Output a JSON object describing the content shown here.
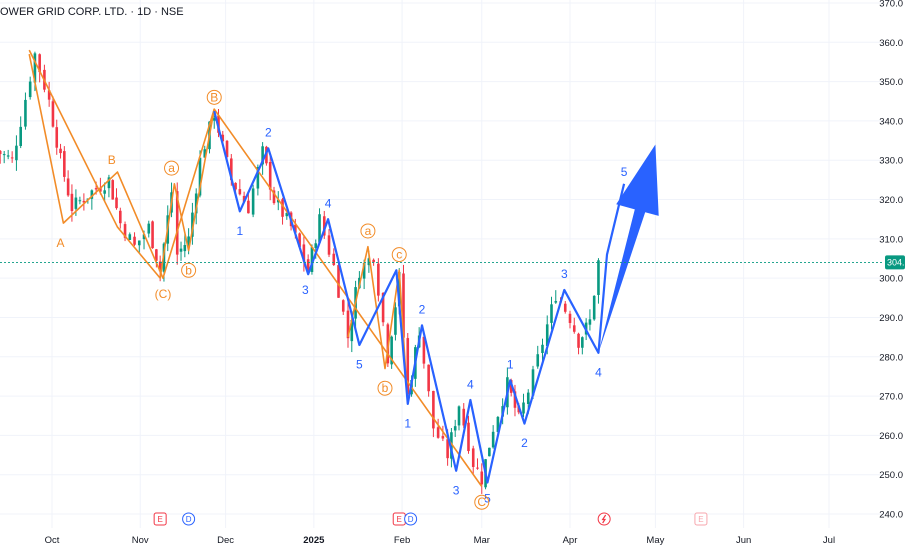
{
  "header": {
    "title": "OWER GRID CORP. LTD. · 1D · NSE"
  },
  "colors": {
    "up": "#089981",
    "down": "#f23645",
    "wave_blue": "#2962ff",
    "wave_orange": "#f28c28",
    "arrow": "#2962ff",
    "price_tag": "#089981",
    "grid": "#f0f3fa",
    "event_e": "#f23645",
    "event_d": "#2962ff",
    "event_future_e": "#f7a6ad"
  },
  "chart_data": {
    "type": "candlestick",
    "title": "OWER GRID CORP. LTD. · 1D · NSE",
    "y_ticks": [
      240,
      250,
      260,
      270,
      280,
      290,
      300,
      310,
      320,
      330,
      340,
      350,
      360,
      370
    ],
    "y_tick_labels": [
      "240.0",
      "250.0",
      "260.0",
      "270.0",
      "280.0",
      "290.0",
      "300.0",
      "310.0",
      "320.0",
      "330.0",
      "340.0",
      "350.0",
      "360.0",
      "370.0"
    ],
    "ylim": [
      237,
      372
    ],
    "x_ticks": [
      {
        "label": "Oct",
        "date": "2024-10-01",
        "bold": false
      },
      {
        "label": "Nov",
        "date": "2024-11-01",
        "bold": false
      },
      {
        "label": "Dec",
        "date": "2024-12-01",
        "bold": false
      },
      {
        "label": "2025",
        "date": "2025-01-01",
        "bold": true
      },
      {
        "label": "Feb",
        "date": "2025-02-01",
        "bold": false
      },
      {
        "label": "Mar",
        "date": "2025-03-01",
        "bold": false
      },
      {
        "label": "Apr",
        "date": "2025-04-01",
        "bold": false
      },
      {
        "label": "May",
        "date": "2025-05-01",
        "bold": false
      },
      {
        "label": "Jun",
        "date": "2025-06-01",
        "bold": false
      },
      {
        "label": "Jul",
        "date": "2025-07-01",
        "bold": false
      }
    ],
    "last_price": {
      "value": 304,
      "label": "304."
    },
    "price_path": [
      [
        "2024-09-10",
        333
      ],
      [
        "2024-09-17",
        330
      ],
      [
        "2024-09-20",
        340
      ],
      [
        "2024-09-25",
        357
      ],
      [
        "2024-09-30",
        345
      ],
      [
        "2024-10-04",
        330
      ],
      [
        "2024-10-08",
        318
      ],
      [
        "2024-10-15",
        322
      ],
      [
        "2024-10-21",
        325
      ],
      [
        "2024-10-25",
        314
      ],
      [
        "2024-10-30",
        308
      ],
      [
        "2024-11-04",
        313
      ],
      [
        "2024-11-08",
        302
      ],
      [
        "2024-11-12",
        322
      ],
      [
        "2024-11-14",
        306
      ],
      [
        "2024-11-18",
        310
      ],
      [
        "2024-11-22",
        330
      ],
      [
        "2024-11-27",
        342
      ],
      [
        "2024-12-03",
        325
      ],
      [
        "2024-12-09",
        318
      ],
      [
        "2024-12-14",
        332
      ],
      [
        "2024-12-18",
        320
      ],
      [
        "2024-12-24",
        313
      ],
      [
        "2024-12-30",
        302
      ],
      [
        "2025-01-03",
        315
      ],
      [
        "2025-01-08",
        303
      ],
      [
        "2025-01-13",
        285
      ],
      [
        "2025-01-17",
        302
      ],
      [
        "2025-01-22",
        306
      ],
      [
        "2025-01-27",
        280
      ],
      [
        "2025-01-31",
        300
      ],
      [
        "2025-02-03",
        270
      ],
      [
        "2025-02-07",
        287
      ],
      [
        "2025-02-12",
        262
      ],
      [
        "2025-02-17",
        255
      ],
      [
        "2025-02-21",
        268
      ],
      [
        "2025-02-26",
        253
      ],
      [
        "2025-03-01",
        249
      ],
      [
        "2025-03-05",
        262
      ],
      [
        "2025-03-10",
        273
      ],
      [
        "2025-03-14",
        264
      ],
      [
        "2025-03-19",
        275
      ],
      [
        "2025-03-24",
        288
      ],
      [
        "2025-03-27",
        296
      ],
      [
        "2025-04-01",
        290
      ],
      [
        "2025-04-04",
        284
      ],
      [
        "2025-04-08",
        289
      ],
      [
        "2025-04-11",
        304
      ]
    ],
    "wave_blue": [
      [
        "2024-11-27",
        342.5
      ],
      [
        "2024-12-06",
        317
      ],
      [
        "2024-12-16",
        333
      ],
      [
        "2024-12-30",
        301
      ],
      [
        "2025-01-06",
        315
      ],
      [
        "2025-01-17",
        283
      ],
      [
        "2025-01-30",
        302
      ],
      [
        "2025-02-03",
        268
      ],
      [
        "2025-02-08",
        288
      ],
      [
        "2025-02-20",
        251
      ],
      [
        "2025-02-25",
        269
      ],
      [
        "2025-03-03",
        248
      ],
      [
        "2025-03-11",
        274
      ],
      [
        "2025-03-16",
        263
      ],
      [
        "2025-03-30",
        297
      ],
      [
        "2025-04-11",
        281
      ],
      [
        "2025-04-14",
        306
      ],
      [
        "2025-04-20",
        324
      ]
    ],
    "wave_orange_ABC": [
      [
        "2024-09-23",
        357
      ],
      [
        "2024-10-05",
        314
      ],
      [
        "2024-10-24",
        327
      ],
      [
        "2024-11-09",
        300
      ],
      [
        "2024-11-27",
        343
      ],
      [
        "2025-03-01",
        247
      ]
    ],
    "wave_orange_inner": [
      [
        "2024-09-23",
        358
      ],
      [
        "2024-10-24",
        313
      ],
      [
        "2024-11-08",
        300
      ],
      [
        "2024-11-13",
        324
      ],
      [
        "2024-11-18",
        307
      ],
      [
        "2024-11-27",
        343
      ],
      [
        "2025-01-13",
        285
      ],
      [
        "2025-01-20",
        308
      ],
      [
        "2025-01-26",
        277
      ],
      [
        "2025-01-31",
        302
      ],
      [
        "2025-02-03",
        268
      ]
    ],
    "wave_labels_blue": [
      {
        "text": "2",
        "date": "2024-12-16",
        "price": 337
      },
      {
        "text": "1",
        "date": "2024-12-06",
        "price": 312
      },
      {
        "text": "4",
        "date": "2025-01-06",
        "price": 319
      },
      {
        "text": "3",
        "date": "2024-12-29",
        "price": 297
      },
      {
        "text": "5",
        "date": "2025-01-17",
        "price": 278
      },
      {
        "text": "2",
        "date": "2025-02-08",
        "price": 292
      },
      {
        "text": "1",
        "date": "2025-02-03",
        "price": 263
      },
      {
        "text": "4",
        "date": "2025-02-25",
        "price": 273
      },
      {
        "text": "3",
        "date": "2025-02-20",
        "price": 246
      },
      {
        "text": "5",
        "date": "2025-03-03",
        "price": 244
      },
      {
        "text": "1",
        "date": "2025-03-11",
        "price": 278
      },
      {
        "text": "2",
        "date": "2025-03-16",
        "price": 258
      },
      {
        "text": "3",
        "date": "2025-03-30",
        "price": 301
      },
      {
        "text": "4",
        "date": "2025-04-11",
        "price": 276
      },
      {
        "text": "5",
        "date": "2025-04-20",
        "price": 327
      }
    ],
    "wave_labels_orange": [
      {
        "text": "A",
        "date": "2024-10-04",
        "price": 309,
        "circle": false
      },
      {
        "text": "B",
        "date": "2024-10-22",
        "price": 330,
        "circle": false
      },
      {
        "text": "(C)",
        "date": "2024-11-09",
        "price": 296,
        "circle": false
      },
      {
        "text": "B",
        "date": "2024-11-27",
        "price": 346,
        "circle": true
      },
      {
        "text": "a",
        "date": "2024-11-12",
        "price": 328,
        "circle": true
      },
      {
        "text": "b",
        "date": "2024-11-18",
        "price": 302,
        "circle": true
      },
      {
        "text": "a",
        "date": "2025-01-20",
        "price": 312,
        "circle": true
      },
      {
        "text": "b",
        "date": "2025-01-26",
        "price": 272,
        "circle": true
      },
      {
        "text": "c",
        "date": "2025-01-31",
        "price": 306,
        "circle": true
      },
      {
        "text": "C",
        "date": "2025-03-01",
        "price": 243,
        "circle": true
      }
    ],
    "events": [
      {
        "type": "E",
        "date": "2024-11-08",
        "future": false
      },
      {
        "type": "D",
        "date": "2024-11-18",
        "future": false
      },
      {
        "type": "E",
        "date": "2025-01-31",
        "future": false
      },
      {
        "type": "D",
        "date": "2025-02-04",
        "future": false
      },
      {
        "type": "split",
        "date": "2025-04-13",
        "future": false
      },
      {
        "type": "E",
        "date": "2025-05-17",
        "future": true
      }
    ],
    "arrow": {
      "from": [
        "2025-04-11",
        281
      ],
      "to": [
        "2025-05-01",
        334
      ]
    }
  }
}
